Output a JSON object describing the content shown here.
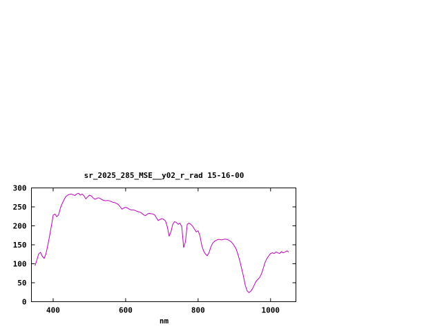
{
  "window": {
    "background": "#ffffff"
  },
  "chart_data": {
    "type": "line",
    "title": "sr_2025_285_MSE__y02_r_rad 15-16-00",
    "xlabel": "nm",
    "ylabel": "",
    "xlim": [
      340,
      1070
    ],
    "ylim": [
      0,
      300
    ],
    "grid": false,
    "legend": "none",
    "colors": {
      "line": "#c000c0",
      "axis": "#000000",
      "text": "#000000",
      "background": "#ffffff"
    },
    "x_ticks": [
      {
        "value": 400,
        "label": "400"
      },
      {
        "value": 600,
        "label": "600"
      },
      {
        "value": 800,
        "label": "800"
      },
      {
        "value": 1000,
        "label": "1000"
      }
    ],
    "y_ticks": [
      {
        "value": 0,
        "label": "0"
      },
      {
        "value": 50,
        "label": "50"
      },
      {
        "value": 100,
        "label": "100"
      },
      {
        "value": 150,
        "label": "150"
      },
      {
        "value": 200,
        "label": "200"
      },
      {
        "value": 250,
        "label": "250"
      },
      {
        "value": 300,
        "label": "300"
      }
    ],
    "x": [
      350,
      355,
      360,
      365,
      370,
      375,
      380,
      385,
      390,
      395,
      400,
      405,
      410,
      415,
      420,
      425,
      430,
      435,
      440,
      445,
      450,
      455,
      460,
      465,
      470,
      475,
      480,
      485,
      490,
      495,
      500,
      505,
      510,
      515,
      520,
      525,
      530,
      535,
      540,
      545,
      550,
      555,
      560,
      565,
      570,
      575,
      580,
      585,
      590,
      595,
      600,
      605,
      610,
      615,
      620,
      625,
      630,
      635,
      640,
      645,
      650,
      655,
      660,
      665,
      670,
      675,
      680,
      685,
      690,
      695,
      700,
      705,
      710,
      715,
      720,
      725,
      730,
      735,
      740,
      745,
      750,
      755,
      760,
      765,
      770,
      775,
      780,
      785,
      790,
      795,
      800,
      805,
      810,
      815,
      820,
      825,
      830,
      835,
      840,
      845,
      850,
      855,
      860,
      865,
      870,
      875,
      880,
      885,
      890,
      895,
      900,
      905,
      910,
      915,
      920,
      925,
      930,
      935,
      940,
      945,
      950,
      955,
      960,
      965,
      970,
      975,
      980,
      985,
      990,
      995,
      1000,
      1005,
      1010,
      1015,
      1020,
      1025,
      1030,
      1035,
      1040,
      1045,
      1050
    ],
    "y": [
      95,
      110,
      126,
      130,
      120,
      114,
      126,
      148,
      172,
      200,
      228,
      231,
      224,
      229,
      247,
      259,
      269,
      277,
      281,
      283,
      284,
      282,
      280,
      284,
      286,
      281,
      284,
      279,
      271,
      276,
      281,
      279,
      274,
      270,
      272,
      274,
      272,
      269,
      267,
      266,
      267,
      266,
      264,
      262,
      261,
      259,
      256,
      250,
      244,
      247,
      249,
      247,
      244,
      242,
      242,
      241,
      239,
      237,
      236,
      233,
      229,
      227,
      231,
      233,
      232,
      231,
      229,
      221,
      214,
      217,
      219,
      217,
      213,
      198,
      173,
      184,
      204,
      211,
      209,
      204,
      207,
      198,
      143,
      158,
      204,
      207,
      204,
      199,
      191,
      184,
      187,
      174,
      149,
      134,
      126,
      121,
      129,
      144,
      154,
      159,
      162,
      164,
      164,
      163,
      164,
      165,
      164,
      162,
      159,
      154,
      147,
      139,
      124,
      108,
      88,
      68,
      44,
      29,
      24,
      27,
      34,
      44,
      54,
      59,
      64,
      74,
      89,
      104,
      114,
      121,
      127,
      129,
      127,
      131,
      129,
      127,
      132,
      129,
      131,
      134,
      131
    ]
  }
}
